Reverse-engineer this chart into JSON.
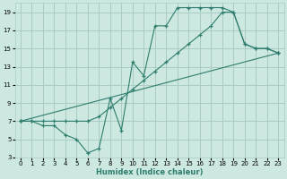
{
  "xlabel": "Humidex (Indice chaleur)",
  "bg_color": "#cce8e0",
  "grid_color": "#aaccc4",
  "line_color": "#2e7d6e",
  "xlim": [
    -0.5,
    23.5
  ],
  "ylim": [
    3,
    20
  ],
  "yticks": [
    3,
    5,
    7,
    9,
    11,
    13,
    15,
    17,
    19
  ],
  "xticks": [
    0,
    1,
    2,
    3,
    4,
    5,
    6,
    7,
    8,
    9,
    10,
    11,
    12,
    13,
    14,
    15,
    16,
    17,
    18,
    19,
    20,
    21,
    22,
    23
  ],
  "line1_x": [
    0,
    1,
    2,
    3,
    4,
    5,
    6,
    7,
    8,
    9,
    10,
    11,
    12,
    13,
    14,
    15,
    16,
    17,
    18,
    19,
    20,
    21,
    22,
    23
  ],
  "line1_y": [
    7,
    7,
    6.5,
    6.5,
    5.5,
    5,
    3.5,
    4,
    9.5,
    6,
    13.5,
    12,
    17.5,
    17.5,
    19.5,
    19.5,
    19.5,
    19.5,
    19.5,
    19,
    15.5,
    15,
    15,
    14.5
  ],
  "line2_x": [
    0,
    1,
    2,
    3,
    4,
    5,
    6,
    7,
    8,
    9,
    10,
    11,
    12,
    13,
    14,
    15,
    16,
    17,
    18,
    19,
    20,
    21,
    22,
    23
  ],
  "line2_y": [
    7,
    7,
    7,
    7,
    7,
    7,
    7,
    7.5,
    8.5,
    9.5,
    10.5,
    11.5,
    12.5,
    13.5,
    14.5,
    15.5,
    16.5,
    17.5,
    19,
    19,
    15.5,
    15,
    15,
    14.5
  ],
  "line3_x": [
    0,
    23
  ],
  "line3_y": [
    7,
    14.5
  ]
}
